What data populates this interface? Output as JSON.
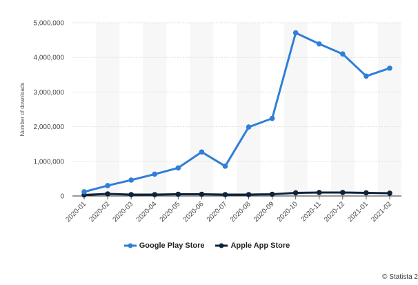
{
  "chart_data": {
    "type": "line",
    "x": [
      "2020-01",
      "2020-02",
      "2020-03",
      "2020-04",
      "2020-05",
      "2020-06",
      "2020-07",
      "2020-08",
      "2020-09",
      "2020-10",
      "2020-11",
      "2020-12",
      "2021-01",
      "2021-02"
    ],
    "series": [
      {
        "name": "Google Play Store",
        "color": "#2f7ed8",
        "values": [
          120000,
          300000,
          460000,
          630000,
          810000,
          1270000,
          860000,
          1990000,
          2240000,
          4710000,
          4390000,
          4100000,
          3460000,
          3690000
        ]
      },
      {
        "name": "Apple App Store",
        "color": "#0d233a",
        "values": [
          30000,
          60000,
          40000,
          40000,
          50000,
          50000,
          40000,
          40000,
          50000,
          90000,
          100000,
          100000,
          90000,
          80000
        ]
      }
    ],
    "xlabel": "",
    "ylabel": "Number of downloads",
    "ylim": [
      0,
      5000000
    ],
    "yticks": [
      0,
      1000000,
      2000000,
      3000000,
      4000000,
      5000000
    ],
    "ytick_labels": [
      "0",
      "1,000,000",
      "2,000,000",
      "3,000,000",
      "4,000,000",
      "5,000,000"
    ],
    "grid": true,
    "legend_position": "bottom-center"
  },
  "credit": "© Statista 2"
}
